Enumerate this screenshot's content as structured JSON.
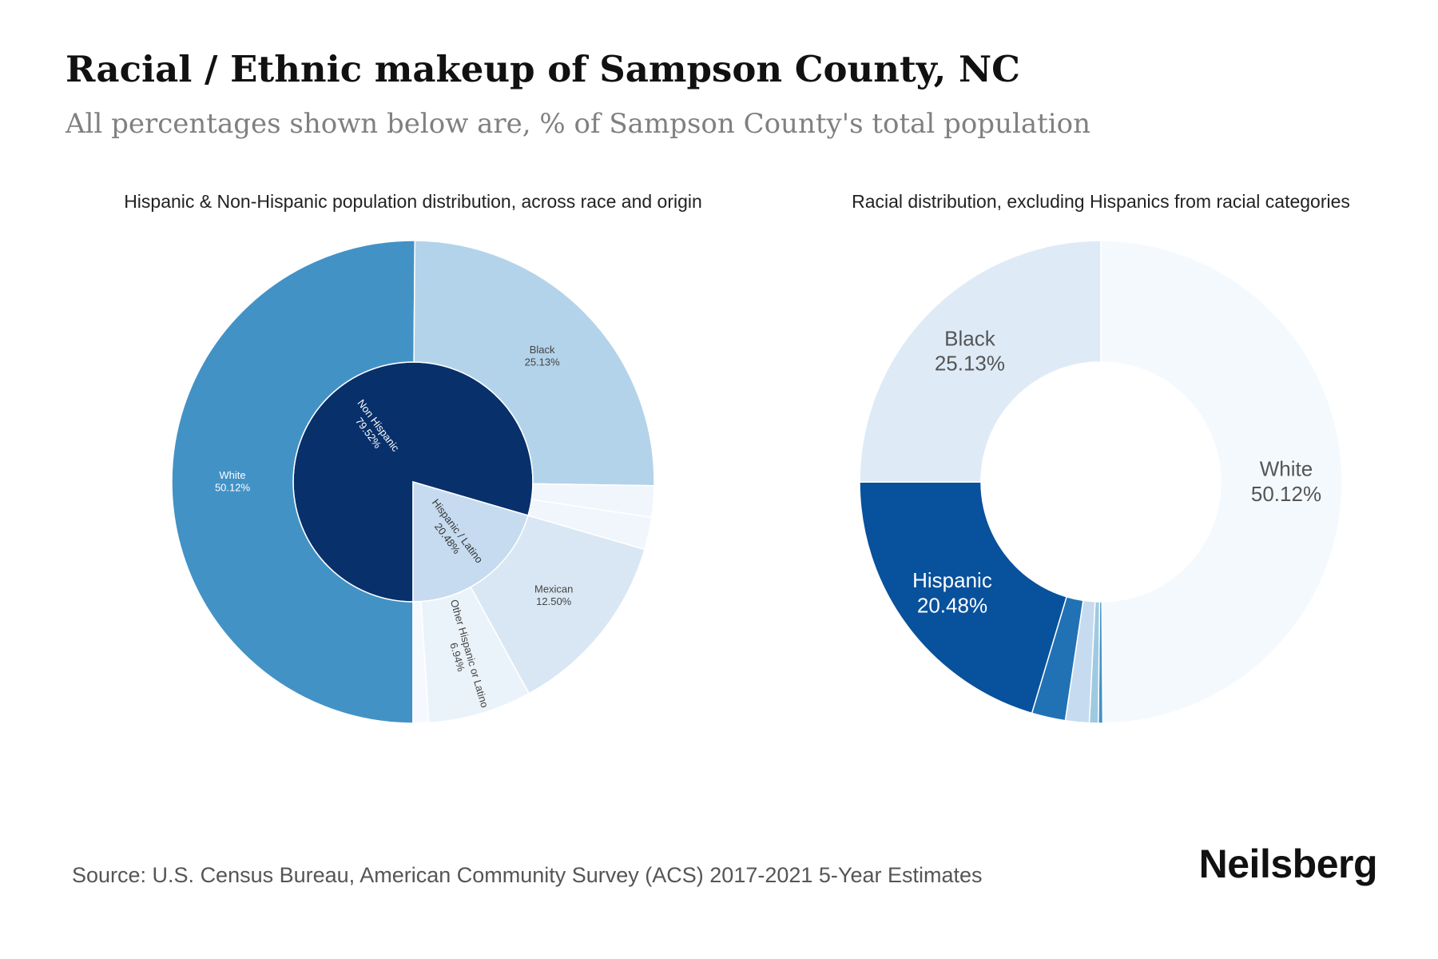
{
  "header": {
    "title": "Racial / Ethnic makeup of Sampson County, NC",
    "subtitle": "All percentages shown below are, % of Sampson County's total population"
  },
  "footer": {
    "source": "Source: U.S. Census Bureau, American Community Survey (ACS) 2017-2021 5-Year Estimates",
    "brand": "Neilsberg"
  },
  "chart_data": [
    {
      "type": "pie",
      "subtype": "sunburst",
      "title": "Hispanic & Non-Hispanic population distribution, across race and origin",
      "inner": [
        {
          "label": "Non Hispanic",
          "value": 79.52,
          "value_label": "79.52%",
          "color": "#08306b"
        },
        {
          "label": "Hispanic / Latino",
          "value": 20.48,
          "value_label": "20.48%",
          "color": "#c6dbef"
        }
      ],
      "outer": [
        {
          "label": "White",
          "value": 50.12,
          "value_label": "50.12%",
          "color": "#4292c6",
          "parent": "Non Hispanic"
        },
        {
          "label": "Black",
          "value": 25.13,
          "value_label": "25.13%",
          "color": "#b3d3ea",
          "parent": "Non Hispanic"
        },
        {
          "label": "",
          "value": 2.1,
          "color": "#f0f6fc",
          "parent": "Non Hispanic"
        },
        {
          "label": "",
          "value": 2.17,
          "color": "#f0f6fc",
          "parent": "Non Hispanic"
        },
        {
          "label": "Mexican",
          "value": 12.5,
          "value_label": "12.50%",
          "color": "#d9e7f4",
          "parent": "Hispanic / Latino"
        },
        {
          "label": "Other Hispanic or Latino",
          "value": 6.94,
          "value_label": "6.94%",
          "color": "#ebf3fa",
          "parent": "Hispanic / Latino"
        },
        {
          "label": "",
          "value": 1.04,
          "color": "#f5f9fd",
          "parent": "Hispanic / Latino"
        }
      ]
    },
    {
      "type": "pie",
      "subtype": "donut",
      "title": "Racial distribution, excluding Hispanics from racial categories",
      "slices": [
        {
          "label": "White",
          "value": 50.12,
          "value_label": "50.12%",
          "color": "#f4f9fe"
        },
        {
          "label": "",
          "value": 0.3,
          "color": "#4292c6"
        },
        {
          "label": "",
          "value": 0.6,
          "color": "#9ecae1"
        },
        {
          "label": "",
          "value": 1.6,
          "color": "#c6dbef"
        },
        {
          "label": "",
          "value": 2.27,
          "color": "#2171b5"
        },
        {
          "label": "Hispanic",
          "value": 20.48,
          "value_label": "20.48%",
          "color": "#08519c"
        },
        {
          "label": "Black",
          "value": 25.13,
          "value_label": "25.13%",
          "color": "#deebf7"
        }
      ]
    }
  ]
}
